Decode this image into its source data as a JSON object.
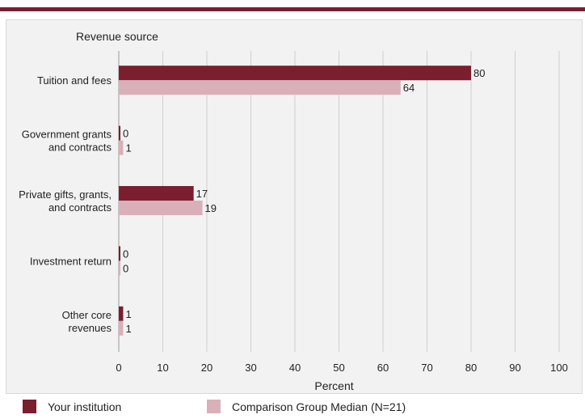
{
  "chart_data": {
    "type": "bar",
    "orientation": "horizontal",
    "title": "Revenue source",
    "xlabel": "Percent",
    "ylabel": "",
    "xlim": [
      0,
      100
    ],
    "xticks": [
      0,
      10,
      20,
      30,
      40,
      50,
      60,
      70,
      80,
      90,
      100
    ],
    "grid": true,
    "categories": [
      [
        "Tuition and fees"
      ],
      [
        "Government grants",
        "and contracts"
      ],
      [
        "Private gifts, grants,",
        "and contracts"
      ],
      [
        "Investment return"
      ],
      [
        "Other core",
        "revenues"
      ]
    ],
    "series": [
      {
        "name": "Your institution",
        "values": [
          80,
          0,
          17,
          0,
          1
        ],
        "color": "#7b1e2e"
      },
      {
        "name": "Comparison Group Median (N=21)",
        "values": [
          64,
          1,
          19,
          0,
          1
        ],
        "color": "#d9b0b7"
      }
    ],
    "legend_position": "bottom"
  }
}
